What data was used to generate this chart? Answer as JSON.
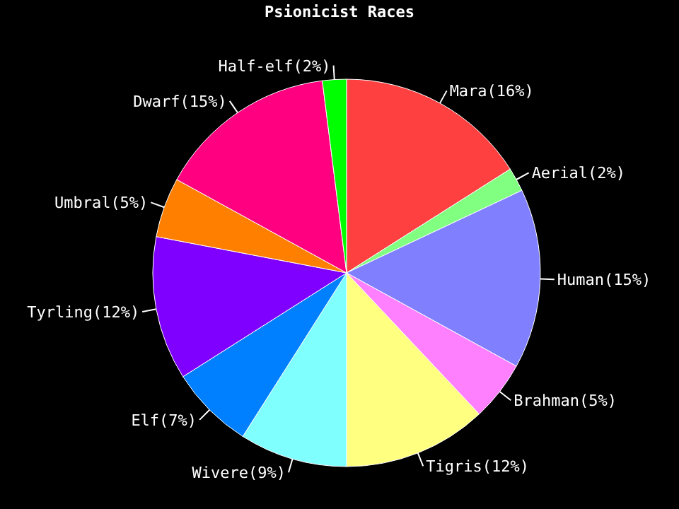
{
  "chart_data": {
    "type": "pie",
    "title": "Psionicist Races",
    "categories": [
      "Mara(16%)",
      "Aerial(2%)",
      "Human(15%)",
      "Brahman(5%)",
      "Tigris(12%)",
      "Wivere(9%)",
      "Elf(7%)",
      "Tyrling(12%)",
      "Umbral(5%)",
      "Dwarf(15%)",
      "Half-elf(2%)"
    ],
    "values": [
      16,
      2,
      15,
      5,
      12,
      9,
      7,
      12,
      5,
      15,
      2
    ],
    "colors": [
      "#ff4040",
      "#80ff80",
      "#8080ff",
      "#ff80ff",
      "#ffff80",
      "#80ffff",
      "#0080ff",
      "#8000ff",
      "#ff8000",
      "#ff0080",
      "#00ff00"
    ],
    "legend": false
  }
}
